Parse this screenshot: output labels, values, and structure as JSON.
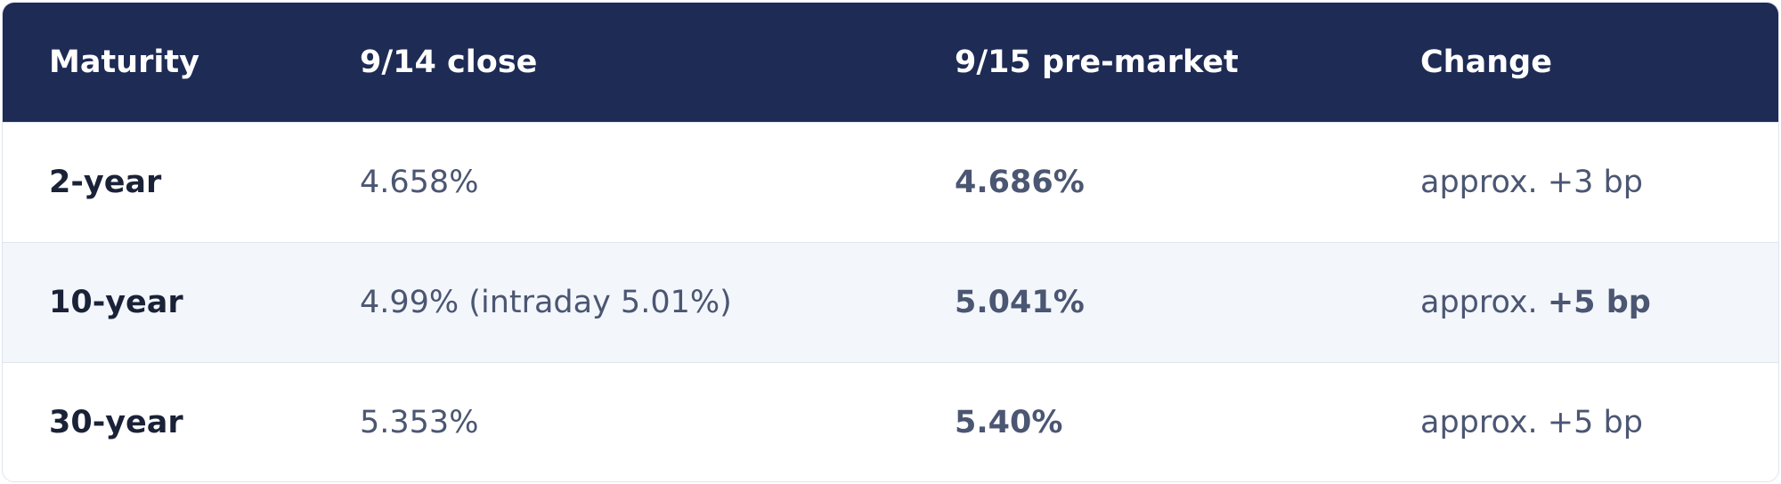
{
  "table": {
    "header": [
      "Maturity",
      "9/14 close",
      "9/15 pre-market",
      "Change"
    ],
    "rows": [
      [
        "2-year",
        "4.658%",
        "4.686%",
        {
          "text": "approx. +3 bp"
        }
      ],
      [
        "10-year",
        "4.99% (intraday 5.01%)",
        "5.041%",
        {
          "text": "approx.",
          "bold": "+5 bp"
        }
      ],
      [
        "30-year",
        "5.353%",
        "5.40%",
        {
          "text": "approx. +5 bp"
        }
      ]
    ]
  }
}
